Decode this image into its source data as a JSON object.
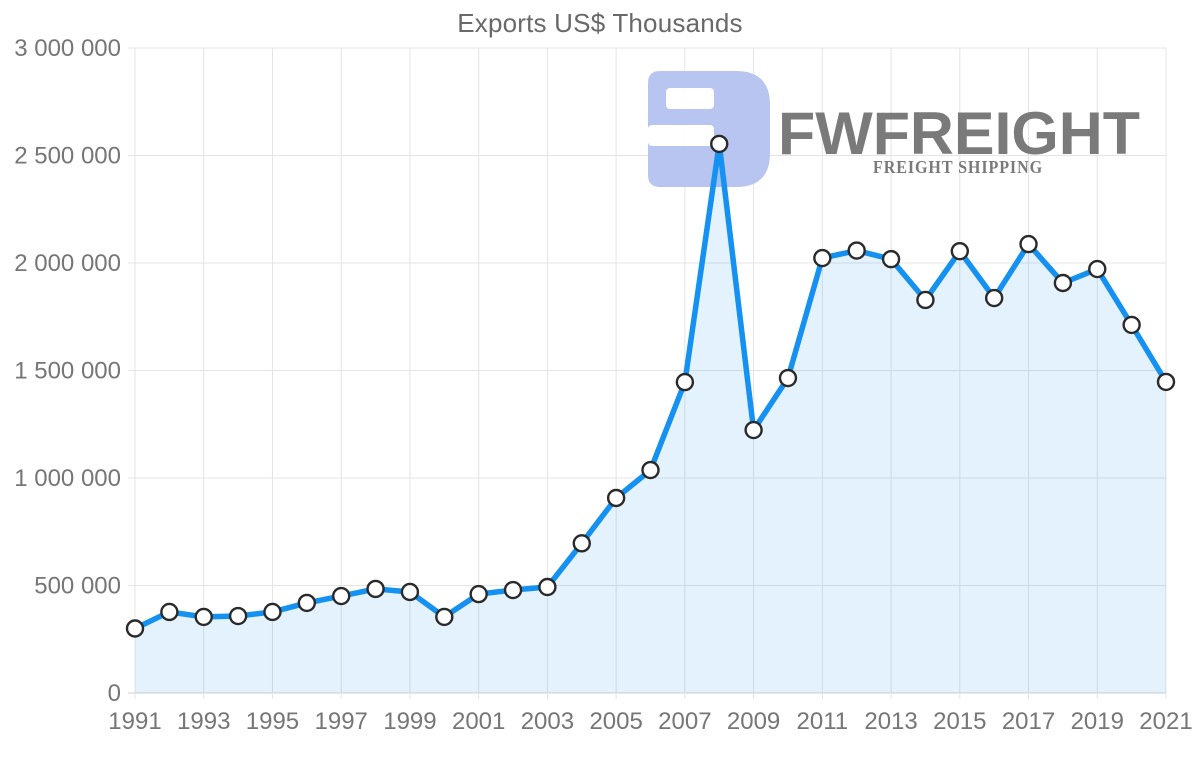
{
  "chart": {
    "title": "Exports US$ Thousands"
  },
  "watermark": {
    "brand": "FWFREIGHT",
    "tagline": "FREIGHT SHIPPING",
    "brand_color": "#b2c2ef",
    "tagline_color": "#9fb2ea",
    "logo_color": "#b5c4f0"
  },
  "chart_data": {
    "type": "area",
    "title": "Exports US$ Thousands",
    "xlabel": "",
    "ylabel": "",
    "x": [
      1991,
      1992,
      1993,
      1994,
      1995,
      1996,
      1997,
      1998,
      1999,
      2000,
      2001,
      2002,
      2003,
      2004,
      2005,
      2006,
      2007,
      2008,
      2009,
      2010,
      2011,
      2012,
      2013,
      2014,
      2015,
      2016,
      2017,
      2018,
      2019,
      2020,
      2021
    ],
    "series": [
      {
        "name": "Exports US$ Thousands",
        "values": [
          300000,
          377000,
          354000,
          358000,
          377000,
          419000,
          451000,
          484000,
          470000,
          354000,
          460000,
          479000,
          493000,
          696000,
          907000,
          1037000,
          1446000,
          2554000,
          1223000,
          1465000,
          2023000,
          2058000,
          2018000,
          1828000,
          2055000,
          1837000,
          2088000,
          1907000,
          1972000,
          1712000,
          1447000
        ]
      }
    ],
    "ylim": [
      0,
      3000000
    ],
    "ytick_step": 500000,
    "xtick_step": 2,
    "grid": true,
    "legend": "none",
    "y_tick_labels": [
      "0",
      "500 000",
      "1 000 000",
      "1 500 000",
      "2 000 000",
      "2 500 000",
      "3 000 000"
    ],
    "x_tick_labels": [
      "1991",
      "1993",
      "1995",
      "1997",
      "1999",
      "2001",
      "2003",
      "2005",
      "2007",
      "2009",
      "2011",
      "2013",
      "2015",
      "2017",
      "2019",
      "2021"
    ],
    "colors": {
      "line": "#1591f1",
      "area_fill": "rgba(21,145,241,0.12)",
      "marker_fill": "#ffffff",
      "marker_stroke": "#2a2a2a",
      "grid": "#e4e4e4",
      "baseline": "#d2d2d2",
      "axis_text": "#767676",
      "title_text": "#696969"
    }
  }
}
